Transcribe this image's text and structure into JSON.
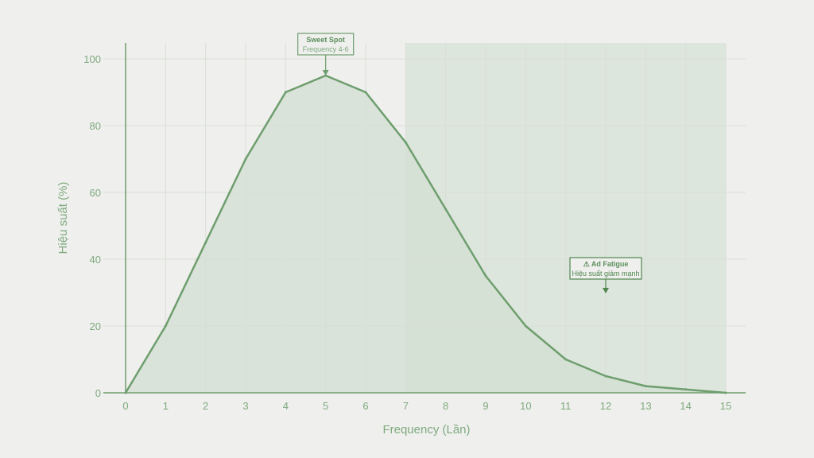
{
  "chart_data": {
    "type": "area",
    "x": [
      0,
      1,
      2,
      3,
      4,
      5,
      6,
      7,
      8,
      9,
      10,
      11,
      12,
      13,
      14,
      15
    ],
    "series": [
      {
        "values": [
          0,
          20,
          45,
          70,
          90,
          95,
          90,
          75,
          55,
          35,
          20,
          10,
          5,
          2,
          1,
          0
        ]
      }
    ],
    "xlabel": "Frequency (Lần)",
    "ylabel": "Hiệu suất (%)",
    "xlim": [
      0,
      15
    ],
    "ylim": [
      0,
      100
    ],
    "xticks": [
      "0",
      "1",
      "2",
      "3",
      "4",
      "5",
      "6",
      "7",
      "8",
      "9",
      "10",
      "11",
      "12",
      "13",
      "14",
      "15"
    ],
    "yticks": [
      "0",
      "20",
      "40",
      "60",
      "80",
      "100"
    ],
    "grid": true,
    "shaded_region": {
      "x_start": 7,
      "x_end": 15
    },
    "annotations": [
      {
        "title": "Sweet Spot",
        "subtitle": "Frequency 4-6",
        "x": 5,
        "y": 95
      },
      {
        "title": "⚠ Ad Fatigue",
        "subtitle": "Hiệu suất giảm mạnh",
        "x": 12,
        "y": 30
      }
    ],
    "colors": {
      "line": "#6e9e6e",
      "fill": "#d3dfd1",
      "shade": "#dde6dd",
      "grid": "#d9dfd8",
      "axis": "#6e9e6e",
      "text": "#7faa7f",
      "background": "#efefed"
    }
  }
}
